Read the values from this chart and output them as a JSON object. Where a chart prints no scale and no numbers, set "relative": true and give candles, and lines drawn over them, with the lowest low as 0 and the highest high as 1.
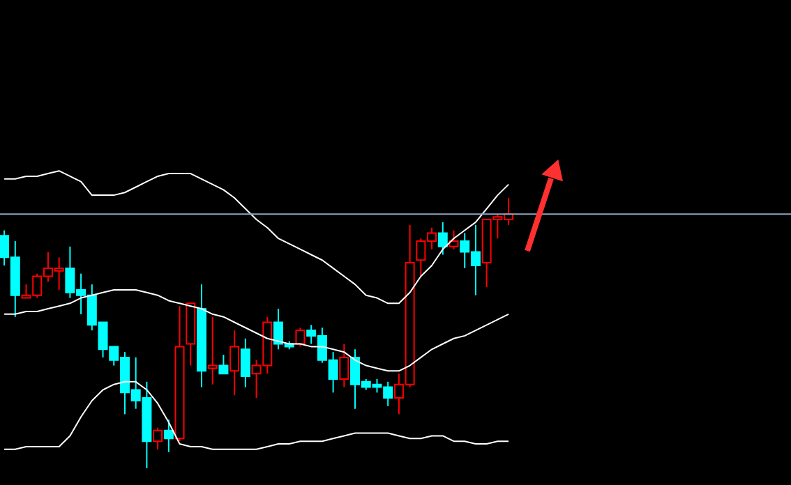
{
  "chart_data": {
    "type": "candlestick",
    "relative": true,
    "categories": [
      null,
      null,
      null,
      null,
      null,
      null,
      null,
      null,
      null,
      null,
      null,
      null,
      null,
      null,
      null,
      null,
      null,
      null,
      null,
      null,
      null,
      null,
      null,
      null,
      null,
      null,
      null,
      null,
      null,
      null,
      null,
      null,
      null,
      null,
      null,
      null,
      null,
      null,
      null,
      null,
      null,
      null,
      null,
      null,
      null,
      null,
      null
    ],
    "ohlc": [
      [
        0.86,
        0.88,
        0.75,
        0.78
      ],
      [
        0.78,
        0.84,
        0.56,
        0.64
      ],
      [
        0.63,
        0.68,
        0.63,
        0.64
      ],
      [
        0.64,
        0.72,
        0.63,
        0.71
      ],
      [
        0.71,
        0.8,
        0.69,
        0.74
      ],
      [
        0.73,
        0.78,
        0.66,
        0.74
      ],
      [
        0.74,
        0.82,
        0.63,
        0.65
      ],
      [
        0.66,
        0.72,
        0.57,
        0.64
      ],
      [
        0.64,
        0.68,
        0.51,
        0.53
      ],
      [
        0.54,
        0.54,
        0.41,
        0.44
      ],
      [
        0.45,
        0.45,
        0.38,
        0.4
      ],
      [
        0.41,
        0.43,
        0.2,
        0.28
      ],
      [
        0.29,
        0.41,
        0.22,
        0.25
      ],
      [
        0.26,
        0.32,
        0.0,
        0.1
      ],
      [
        0.1,
        0.15,
        0.07,
        0.14
      ],
      [
        0.14,
        0.18,
        0.06,
        0.11
      ],
      [
        0.11,
        0.6,
        0.1,
        0.45
      ],
      [
        0.46,
        0.61,
        0.38,
        0.61
      ],
      [
        0.59,
        0.68,
        0.3,
        0.36
      ],
      [
        0.37,
        0.56,
        0.31,
        0.38
      ],
      [
        0.38,
        0.42,
        0.35,
        0.35
      ],
      [
        0.36,
        0.51,
        0.27,
        0.45
      ],
      [
        0.44,
        0.48,
        0.3,
        0.34
      ],
      [
        0.35,
        0.4,
        0.26,
        0.38
      ],
      [
        0.38,
        0.56,
        0.35,
        0.54
      ],
      [
        0.54,
        0.59,
        0.44,
        0.46
      ],
      [
        0.46,
        0.47,
        0.44,
        0.45
      ],
      [
        0.46,
        0.52,
        0.45,
        0.51
      ],
      [
        0.51,
        0.53,
        0.46,
        0.49
      ],
      [
        0.49,
        0.52,
        0.39,
        0.4
      ],
      [
        0.4,
        0.43,
        0.28,
        0.33
      ],
      [
        0.33,
        0.46,
        0.3,
        0.41
      ],
      [
        0.41,
        0.44,
        0.22,
        0.31
      ],
      [
        0.32,
        0.33,
        0.29,
        0.3
      ],
      [
        0.31,
        0.33,
        0.28,
        0.3
      ],
      [
        0.3,
        0.32,
        0.23,
        0.26
      ],
      [
        0.26,
        0.35,
        0.2,
        0.31
      ],
      [
        0.31,
        0.9,
        0.3,
        0.76
      ],
      [
        0.77,
        0.85,
        0.71,
        0.84
      ],
      [
        0.84,
        0.89,
        0.81,
        0.87
      ],
      [
        0.87,
        0.91,
        0.79,
        0.82
      ],
      [
        0.82,
        0.88,
        0.81,
        0.84
      ],
      [
        0.84,
        0.87,
        0.74,
        0.8
      ],
      [
        0.8,
        0.9,
        0.64,
        0.75
      ],
      [
        0.76,
        0.92,
        0.67,
        0.92
      ],
      [
        0.92,
        0.94,
        0.85,
        0.93
      ],
      [
        0.92,
        1.0,
        0.9,
        0.94
      ]
    ],
    "colors": [
      "#00ffff",
      "#00ffff",
      "#ff0000",
      "#ff0000",
      "#ff0000",
      "#ff0000",
      "#00ffff",
      "#00ffff",
      "#00ffff",
      "#00ffff",
      "#00ffff",
      "#00ffff",
      "#00ffff",
      "#00ffff",
      "#ff0000",
      "#00ffff",
      "#ff0000",
      "#ff0000",
      "#00ffff",
      "#ff0000",
      "#00ffff",
      "#ff0000",
      "#00ffff",
      "#ff0000",
      "#ff0000",
      "#00ffff",
      "#00ffff",
      "#ff0000",
      "#00ffff",
      "#00ffff",
      "#00ffff",
      "#ff0000",
      "#00ffff",
      "#00ffff",
      "#00ffff",
      "#00ffff",
      "#ff0000",
      "#ff0000",
      "#ff0000",
      "#ff0000",
      "#00ffff",
      "#ff0000",
      "#00ffff",
      "#00ffff",
      "#ff0000",
      "#ff0000",
      "#ff0000"
    ],
    "series": [
      {
        "type": "line",
        "color": "#ffffff",
        "values": [
          1.07,
          1.07,
          1.08,
          1.08,
          1.09,
          1.1,
          1.08,
          1.06,
          1.01,
          1.01,
          1.01,
          1.02,
          1.04,
          1.06,
          1.08,
          1.09,
          1.09,
          1.09,
          1.07,
          1.05,
          1.03,
          1.0,
          0.96,
          0.92,
          0.89,
          0.85,
          0.83,
          0.81,
          0.79,
          0.77,
          0.74,
          0.71,
          0.68,
          0.64,
          0.63,
          0.61,
          0.61,
          0.65,
          0.71,
          0.75,
          0.81,
          0.85,
          0.88,
          0.91,
          0.96,
          1.01,
          1.05
        ]
      },
      {
        "type": "line",
        "color": "#ffffff",
        "values": [
          0.57,
          0.57,
          0.58,
          0.58,
          0.59,
          0.6,
          0.61,
          0.63,
          0.64,
          0.65,
          0.66,
          0.66,
          0.66,
          0.65,
          0.64,
          0.62,
          0.61,
          0.6,
          0.59,
          0.57,
          0.56,
          0.54,
          0.52,
          0.5,
          0.48,
          0.47,
          0.46,
          0.46,
          0.45,
          0.45,
          0.44,
          0.43,
          0.4,
          0.38,
          0.37,
          0.36,
          0.36,
          0.38,
          0.41,
          0.44,
          0.46,
          0.48,
          0.49,
          0.51,
          0.53,
          0.55,
          0.57
        ]
      },
      {
        "type": "line",
        "color": "#ffffff",
        "values": [
          0.07,
          0.07,
          0.08,
          0.08,
          0.08,
          0.08,
          0.12,
          0.19,
          0.25,
          0.29,
          0.31,
          0.32,
          0.32,
          0.29,
          0.24,
          0.17,
          0.09,
          0.08,
          0.08,
          0.07,
          0.07,
          0.07,
          0.07,
          0.07,
          0.08,
          0.09,
          0.09,
          0.1,
          0.1,
          0.1,
          0.11,
          0.12,
          0.13,
          0.13,
          0.13,
          0.13,
          0.12,
          0.11,
          0.11,
          0.12,
          0.12,
          0.1,
          0.1,
          0.09,
          0.09,
          0.1,
          0.1
        ]
      }
    ],
    "line_style": "solid",
    "ref_lines": [
      {
        "axis": "y",
        "value": 0.94,
        "color": "#8fa3bf"
      }
    ]
  }
}
